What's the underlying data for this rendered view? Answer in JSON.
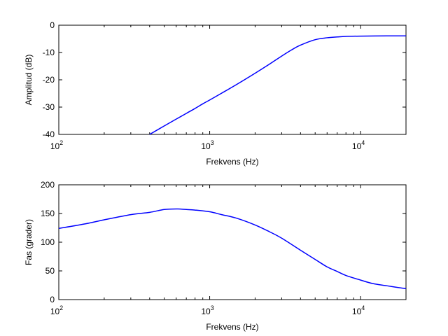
{
  "colors": {
    "series": "#0000ff",
    "axes": "#000000",
    "background": "#ffffff"
  },
  "chart_data": [
    {
      "type": "line",
      "title": "",
      "xlabel": "Frekvens (Hz)",
      "ylabel": "Amplitud (dB)",
      "xscale": "log",
      "xlim": [
        100,
        20000
      ],
      "ylim": [
        -40,
        0
      ],
      "grid": false,
      "xticks": [
        100,
        1000,
        10000
      ],
      "xtick_labels": [
        {
          "base": "10",
          "exp": "2"
        },
        {
          "base": "10",
          "exp": "3"
        },
        {
          "base": "10",
          "exp": "4"
        }
      ],
      "yticks": [
        -40,
        -30,
        -20,
        -10,
        0
      ],
      "ytick_labels": [
        "-40",
        "-30",
        "-20",
        "-10",
        "0"
      ],
      "series": [
        {
          "x": [
            400,
            500,
            600,
            700,
            800,
            900,
            1000,
            1200,
            1500,
            2000,
            2500,
            3000,
            3500,
            4000,
            5000,
            6000,
            7000,
            8000,
            10000,
            15000,
            20000
          ],
          "y": [
            -40,
            -36.9,
            -34.4,
            -32.3,
            -30.5,
            -28.8,
            -27.4,
            -24.9,
            -21.8,
            -17.6,
            -14.2,
            -11.3,
            -9.0,
            -7.3,
            -5.3,
            -4.6,
            -4.3,
            -4.1,
            -4.0,
            -3.9,
            -3.9
          ]
        }
      ]
    },
    {
      "type": "line",
      "title": "",
      "xlabel": "Frekvens (Hz)",
      "ylabel": "Fas (grader)",
      "xscale": "log",
      "xlim": [
        100,
        20000
      ],
      "ylim": [
        0,
        200
      ],
      "grid": false,
      "xticks": [
        100,
        1000,
        10000
      ],
      "xtick_labels": [
        {
          "base": "10",
          "exp": "2"
        },
        {
          "base": "10",
          "exp": "3"
        },
        {
          "base": "10",
          "exp": "4"
        }
      ],
      "yticks": [
        0,
        50,
        100,
        150,
        200
      ],
      "ytick_labels": [
        "0",
        "50",
        "100",
        "150",
        "200"
      ],
      "series": [
        {
          "x": [
            100,
            150,
            200,
            300,
            400,
            500,
            600,
            700,
            800,
            1000,
            1200,
            1500,
            2000,
            2500,
            3000,
            4000,
            5000,
            6000,
            7000,
            8000,
            10000,
            12000,
            15000,
            20000
          ],
          "y": [
            124,
            132,
            139,
            148,
            152,
            157,
            158,
            157,
            156,
            153,
            148,
            142,
            130,
            118,
            107,
            86,
            70,
            57,
            49,
            42,
            34,
            28,
            24,
            19
          ]
        }
      ]
    }
  ]
}
